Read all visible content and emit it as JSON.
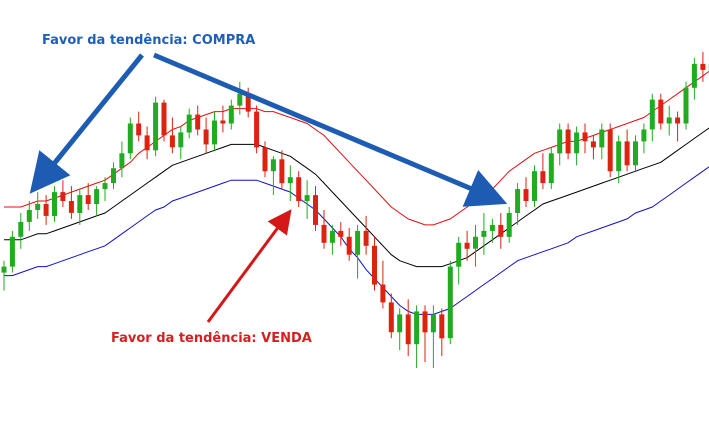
{
  "annotations": {
    "buy": "Favor da tendência: COMPRA",
    "sell": "Favor da tendência: VENDA"
  },
  "colors": {
    "bull": "#22aa22",
    "bear": "#dd2211",
    "upper_band": "#dd1111",
    "middle_band": "#000000",
    "lower_band": "#1111cc",
    "buy_text": "#1f5fb5",
    "sell_text": "#d42020",
    "buy_arrow": "#1e5cb3",
    "sell_arrow": "#d41818"
  },
  "chart_data": {
    "type": "candlestick",
    "title": "",
    "xlabel": "",
    "ylabel": "",
    "ylim": [
      0,
      100
    ],
    "grid": false,
    "series": [
      {
        "name": "candles",
        "values": [
          [
            26,
            30,
            20,
            28
          ],
          [
            28,
            40,
            26,
            38
          ],
          [
            38,
            46,
            34,
            43
          ],
          [
            43,
            50,
            40,
            47
          ],
          [
            47,
            53,
            44,
            49
          ],
          [
            49,
            52,
            42,
            45
          ],
          [
            45,
            55,
            43,
            53
          ],
          [
            53,
            57,
            48,
            50
          ],
          [
            50,
            55,
            44,
            46
          ],
          [
            46,
            54,
            42,
            52
          ],
          [
            52,
            56,
            47,
            49
          ],
          [
            49,
            55,
            45,
            54
          ],
          [
            54,
            58,
            50,
            56
          ],
          [
            56,
            63,
            54,
            61
          ],
          [
            61,
            70,
            58,
            66
          ],
          [
            66,
            78,
            64,
            76
          ],
          [
            76,
            80,
            70,
            72
          ],
          [
            72,
            75,
            64,
            67
          ],
          [
            67,
            85,
            65,
            83
          ],
          [
            83,
            84,
            70,
            72
          ],
          [
            72,
            78,
            66,
            68
          ],
          [
            68,
            75,
            64,
            73
          ],
          [
            73,
            81,
            71,
            79
          ],
          [
            79,
            82,
            72,
            74
          ],
          [
            74,
            78,
            66,
            69
          ],
          [
            69,
            80,
            67,
            77
          ],
          [
            77,
            82,
            73,
            76
          ],
          [
            76,
            84,
            74,
            82
          ],
          [
            82,
            90,
            79,
            86
          ],
          [
            86,
            88,
            78,
            80
          ],
          [
            80,
            82,
            66,
            68
          ],
          [
            68,
            70,
            58,
            60
          ],
          [
            60,
            65,
            52,
            64
          ],
          [
            64,
            67,
            54,
            56
          ],
          [
            56,
            62,
            50,
            58
          ],
          [
            58,
            60,
            48,
            50
          ],
          [
            50,
            57,
            44,
            52
          ],
          [
            52,
            55,
            40,
            42
          ],
          [
            42,
            47,
            34,
            36
          ],
          [
            36,
            42,
            32,
            40
          ],
          [
            40,
            43,
            35,
            38
          ],
          [
            38,
            41,
            30,
            32
          ],
          [
            32,
            42,
            24,
            40
          ],
          [
            40,
            45,
            32,
            35
          ],
          [
            35,
            38,
            20,
            22
          ],
          [
            22,
            30,
            14,
            16
          ],
          [
            16,
            19,
            4,
            6
          ],
          [
            6,
            14,
            0,
            12
          ],
          [
            12,
            17,
            -2,
            2
          ],
          [
            2,
            15,
            -6,
            13
          ],
          [
            13,
            15,
            -4,
            6
          ],
          [
            6,
            15,
            -6,
            12
          ],
          [
            12,
            14,
            -2,
            4
          ],
          [
            4,
            30,
            2,
            28
          ],
          [
            28,
            38,
            22,
            36
          ],
          [
            36,
            40,
            30,
            34
          ],
          [
            34,
            42,
            28,
            38
          ],
          [
            38,
            46,
            32,
            40
          ],
          [
            40,
            44,
            36,
            42
          ],
          [
            42,
            46,
            34,
            38
          ],
          [
            38,
            48,
            36,
            46
          ],
          [
            46,
            56,
            42,
            54
          ],
          [
            54,
            58,
            48,
            50
          ],
          [
            50,
            62,
            48,
            60
          ],
          [
            60,
            66,
            54,
            56
          ],
          [
            56,
            68,
            54,
            66
          ],
          [
            66,
            76,
            62,
            74
          ],
          [
            74,
            76,
            64,
            66
          ],
          [
            66,
            75,
            62,
            73
          ],
          [
            73,
            76,
            66,
            70
          ],
          [
            70,
            72,
            64,
            68
          ],
          [
            68,
            76,
            64,
            74
          ],
          [
            74,
            76,
            58,
            60
          ],
          [
            60,
            72,
            56,
            70
          ],
          [
            70,
            74,
            60,
            62
          ],
          [
            62,
            72,
            60,
            70
          ],
          [
            70,
            76,
            66,
            74
          ],
          [
            74,
            86,
            70,
            84
          ],
          [
            84,
            86,
            74,
            76
          ],
          [
            76,
            82,
            72,
            78
          ],
          [
            78,
            80,
            70,
            76
          ],
          [
            76,
            90,
            74,
            88
          ],
          [
            88,
            98,
            84,
            96
          ],
          [
            96,
            100,
            90,
            94
          ],
          [
            94,
            98,
            90,
            96
          ]
        ]
      },
      {
        "name": "upper",
        "values": [
          48,
          48,
          48,
          49,
          50,
          50,
          51,
          52,
          53,
          54,
          55,
          56,
          57,
          59,
          61,
          63,
          66,
          68,
          70,
          72,
          74,
          75,
          77,
          78,
          79,
          80,
          80,
          81,
          81,
          81,
          81,
          80,
          80,
          79,
          78,
          77,
          76,
          74,
          72,
          69,
          66,
          63,
          60,
          57,
          54,
          51,
          48,
          46,
          44,
          43,
          42,
          42,
          43,
          44,
          46,
          48,
          50,
          52,
          54,
          57,
          60,
          62,
          64,
          66,
          67,
          68,
          69,
          70,
          70,
          71,
          72,
          73,
          74,
          75,
          76,
          77,
          78,
          80,
          82,
          84,
          86,
          88,
          90,
          92,
          94
        ]
      },
      {
        "name": "middle",
        "values": [
          37,
          37,
          37,
          38,
          39,
          39,
          40,
          41,
          42,
          43,
          44,
          45,
          46,
          48,
          50,
          52,
          54,
          56,
          58,
          60,
          62,
          63,
          64,
          65,
          66,
          67,
          68,
          69,
          69,
          69,
          69,
          68,
          67,
          66,
          65,
          63,
          61,
          59,
          56,
          53,
          50,
          47,
          44,
          41,
          38,
          35,
          32,
          30,
          29,
          28,
          28,
          28,
          28,
          29,
          30,
          31,
          33,
          35,
          37,
          39,
          41,
          43,
          45,
          47,
          49,
          50,
          51,
          52,
          53,
          54,
          55,
          56,
          57,
          58,
          59,
          60,
          61,
          62,
          63,
          65,
          67,
          69,
          71,
          73,
          75
        ]
      },
      {
        "name": "lower",
        "values": [
          25,
          25,
          26,
          27,
          28,
          28,
          29,
          30,
          31,
          32,
          33,
          34,
          35,
          37,
          39,
          41,
          43,
          45,
          47,
          48,
          50,
          51,
          52,
          53,
          54,
          55,
          56,
          57,
          57,
          57,
          57,
          56,
          55,
          54,
          53,
          51,
          49,
          47,
          44,
          41,
          38,
          34,
          31,
          27,
          24,
          21,
          18,
          15,
          13,
          12,
          12,
          12,
          13,
          14,
          16,
          18,
          20,
          22,
          24,
          26,
          28,
          30,
          31,
          32,
          33,
          34,
          35,
          36,
          38,
          39,
          40,
          41,
          42,
          43,
          44,
          46,
          47,
          48,
          50,
          52,
          54,
          56,
          58,
          60,
          62
        ]
      }
    ]
  }
}
